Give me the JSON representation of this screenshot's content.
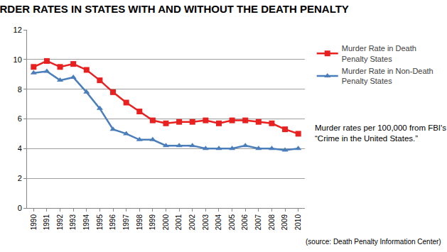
{
  "chart_data": {
    "type": "line",
    "title": "MURDER RATES IN STATES WITH AND WITHOUT THE DEATH PENALTY",
    "categories": [
      "1990",
      "1991",
      "1992",
      "1993",
      "1994",
      "1995",
      "1996",
      "1997",
      "1998",
      "1999",
      "2000",
      "2001",
      "2002",
      "2003",
      "2004",
      "2005",
      "2006",
      "2007",
      "2008",
      "2009",
      "2010"
    ],
    "series": [
      {
        "name": "Murder Rate in Death Penalty States",
        "color": "#e8201f",
        "marker": "square",
        "values": [
          9.5,
          9.9,
          9.5,
          9.7,
          9.3,
          8.6,
          7.8,
          7.1,
          6.5,
          5.9,
          5.7,
          5.8,
          5.8,
          5.9,
          5.7,
          5.9,
          5.9,
          5.8,
          5.7,
          5.3,
          5.0
        ]
      },
      {
        "name": "Murder Rate in Non-Death Penalty States",
        "color": "#4a7ebb",
        "marker": "triangle-up",
        "values": [
          9.1,
          9.2,
          8.6,
          8.8,
          7.8,
          6.7,
          5.3,
          5.0,
          4.6,
          4.6,
          4.2,
          4.2,
          4.2,
          4.0,
          4.0,
          4.0,
          4.2,
          4.0,
          4.0,
          3.9,
          4.0
        ]
      }
    ],
    "ylim": [
      0,
      12
    ],
    "yticks": [
      0,
      2,
      4,
      6,
      8,
      10,
      12
    ],
    "grid": true,
    "legend": "right",
    "annotations": [
      "Murder rates per 100,000 from FBI's “Crime in the United States.”",
      "(source: Death Penalty Information Center)"
    ]
  }
}
